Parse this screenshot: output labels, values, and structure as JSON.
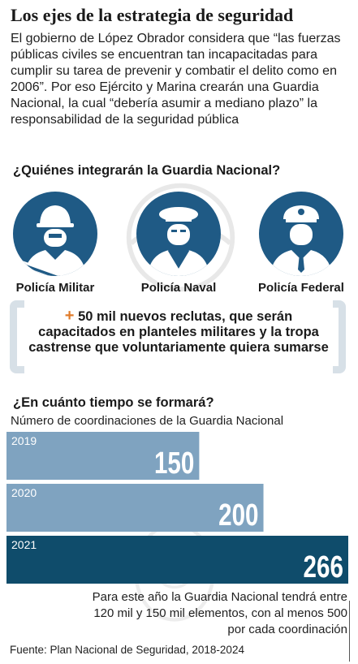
{
  "title": "Los ejes de la estrategia de seguridad",
  "intro": "El gobierno de López Obrador considera que “las fuerzas públicas civiles se encuentran tan incapacitadas para cumplir su tarea de prevenir y combatir el delito como en 2006”. Por eso Ejército y Marina crearán una Guardia Nacional, la cual “debería asumir a mediano plazo” la responsabilidad de la seguridad pública",
  "question1": "¿Quiénes integrarán la Guardia Nacional?",
  "units": [
    {
      "label": "Policía Militar",
      "icon": "soldier-icon"
    },
    {
      "label": "Policía Naval",
      "icon": "sailor-icon"
    },
    {
      "label": "Policía Federal",
      "icon": "federal-officer-icon"
    }
  ],
  "recruits": {
    "plus": "+",
    "text": "50 mil nuevos reclutas, que serán capacitados en planteles militares y la tropa castrense que voluntariamente quiera sumarse"
  },
  "question2": "¿En cuánto tiempo se formará?",
  "chart_data": {
    "type": "bar",
    "orientation": "horizontal",
    "title": "Número de coordinaciones de la Guardia Nacional",
    "categories": [
      "2019",
      "2020",
      "2021"
    ],
    "values": [
      150,
      200,
      266
    ],
    "colors": [
      "#7fa3c0",
      "#7fa3c0",
      "#0f4c6b"
    ]
  },
  "note": "Para este año la Guardia Nacional tendrá entre 120 mil y 150 mil elementos, con al menos 500 por cada coordinación",
  "source": "Fuente: Plan Nacional de Seguridad, 2018-2024",
  "colors": {
    "icon_blue": "#1f5a85",
    "light_bar": "#7fa3c0",
    "dark_bar": "#0f4c6b",
    "accent": "#e07b2a",
    "bracket": "#d7e0e7"
  }
}
